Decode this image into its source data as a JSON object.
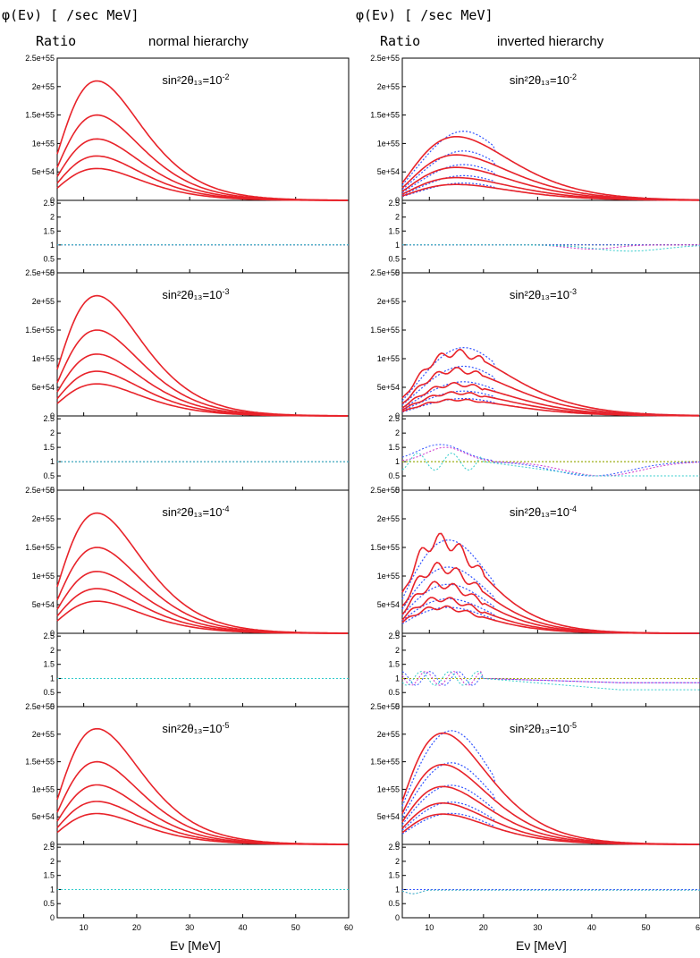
{
  "figure": {
    "left_column": {
      "ylabel_flux": "φ(Eν) [ /sec MeV]",
      "ylabel_ratio": "Ratio",
      "title": "normal hierarchy"
    },
    "right_column": {
      "ylabel_flux": "φ(Eν) [ /sec MeV]",
      "ylabel_ratio": "Ratio",
      "title": "inverted hierarchy"
    },
    "row_annotations": [
      {
        "base": "sin²2θ₁₃=10",
        "exp": "-2"
      },
      {
        "base": "sin²2θ₁₃=10",
        "exp": "-3"
      },
      {
        "base": "sin²2θ₁₃=10",
        "exp": "-4"
      },
      {
        "base": "sin²2θ₁₃=10",
        "exp": "-5"
      }
    ],
    "xlabel": "Eν [MeV]",
    "x_tick_labels": [
      "10",
      "20",
      "30",
      "40",
      "50",
      "60"
    ],
    "flux_tick_labels": [
      "0",
      "5e+54",
      "1e+55",
      "1.5e+55",
      "2e+55",
      "2.5e+55"
    ],
    "ratio_tick_labels": [
      "0",
      "0.5",
      "1",
      "1.5",
      "2",
      "2.5"
    ],
    "colors": {
      "flux": "#e8232a",
      "ratio_magenta": "#cc33cc",
      "ratio_blue": "#3355ff",
      "ratio_cyan": "#33cccc",
      "ratio_green": "#33aa33",
      "ratio_olive": "#aaaa00"
    }
  },
  "chart_data": {
    "type": "line",
    "xlim": [
      5,
      60
    ],
    "flux_ylim": [
      0,
      2.5e+55
    ],
    "ratio_ylim": [
      0,
      2.6
    ],
    "xlabel": "Eν [MeV]",
    "ylabel": "φ(Eν) [ /sec MeV]",
    "panels": [
      {
        "column": "normal hierarchy",
        "sin2_2theta13": "1e-2",
        "flux_peaks_at_MeV": 12.5,
        "flux_peak_values": [
          2.1e+55,
          1.5e+55,
          1.08e+55,
          7.8e+54,
          5.6e+54
        ],
        "ratio_shape": "flat"
      },
      {
        "column": "normal hierarchy",
        "sin2_2theta13": "1e-3",
        "flux_peaks_at_MeV": 12.5,
        "flux_peak_values": [
          2.1e+55,
          1.5e+55,
          1.08e+55,
          7.8e+54,
          5.6e+54
        ],
        "ratio_shape": "flat"
      },
      {
        "column": "normal hierarchy",
        "sin2_2theta13": "1e-4",
        "flux_peaks_at_MeV": 12.5,
        "flux_peak_values": [
          2.1e+55,
          1.5e+55,
          1.08e+55,
          7.8e+54,
          5.6e+54
        ],
        "ratio_shape": "flat"
      },
      {
        "column": "normal hierarchy",
        "sin2_2theta13": "1e-5",
        "flux_peaks_at_MeV": 12.5,
        "flux_peak_values": [
          2.1e+55,
          1.5e+55,
          1.08e+55,
          7.8e+54,
          5.6e+54
        ],
        "ratio_shape": "flat"
      },
      {
        "column": "inverted hierarchy",
        "sin2_2theta13": "1e-2",
        "flux_peaks_at_MeV": 15,
        "flux_peak_values": [
          1.12e+55,
          8e+54,
          5.8e+54,
          4e+54,
          2.8e+54
        ],
        "ratio_shape": "dip"
      },
      {
        "column": "inverted hierarchy",
        "sin2_2theta13": "1e-3",
        "flux_peaks_at_MeV": 15,
        "flux_peak_values": [
          1.1e+55,
          8e+54,
          5.5e+54,
          4e+54,
          2.8e+54
        ],
        "ratio_shape": "bump"
      },
      {
        "column": "inverted hierarchy",
        "sin2_2theta13": "1e-4",
        "flux_peaks_at_MeV": 12,
        "flux_peak_values": [
          1.62e+55,
          1.15e+55,
          8.5e+54,
          6e+54,
          4.5e+54
        ],
        "ratio_shape": "wiggle"
      },
      {
        "column": "inverted hierarchy",
        "sin2_2theta13": "1e-5",
        "flux_peaks_at_MeV": 12.5,
        "flux_peak_values": [
          2.02e+55,
          1.45e+55,
          1.05e+55,
          7.5e+54,
          5.5e+54
        ],
        "ratio_shape": "near-flat"
      }
    ],
    "legend": []
  }
}
